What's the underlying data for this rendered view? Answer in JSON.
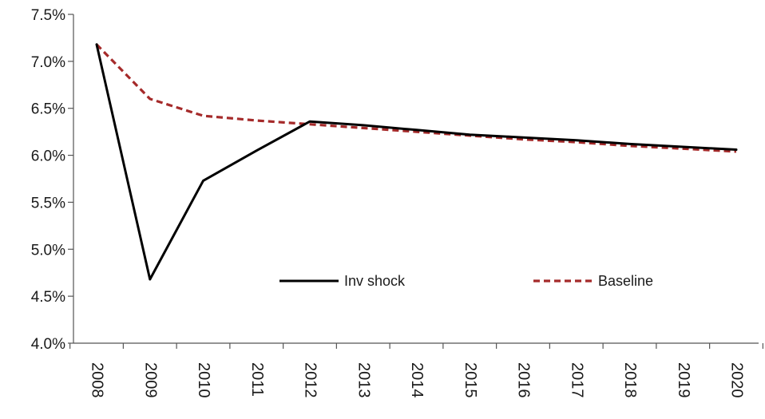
{
  "chart_data": {
    "type": "line",
    "x": [
      "2008",
      "2009",
      "2010",
      "2011",
      "2012",
      "2013",
      "2014",
      "2015",
      "2016",
      "2017",
      "2018",
      "2019",
      "2020"
    ],
    "series": [
      {
        "name": "Inv shock",
        "color": "#000000",
        "dash": "solid",
        "values": [
          7.18,
          4.68,
          5.73,
          6.05,
          6.36,
          6.32,
          6.27,
          6.22,
          6.19,
          6.16,
          6.12,
          6.09,
          6.06
        ]
      },
      {
        "name": "Baseline",
        "color": "#a52a2a",
        "dash": "dashed",
        "values": [
          7.18,
          6.6,
          6.42,
          6.37,
          6.33,
          6.29,
          6.25,
          6.21,
          6.17,
          6.14,
          6.1,
          6.07,
          6.04
        ]
      }
    ],
    "yticks": [
      "4.0%",
      "4.5%",
      "5.0%",
      "5.5%",
      "6.0%",
      "6.5%",
      "7.0%",
      "7.5%"
    ],
    "ylim": [
      4.0,
      7.5
    ],
    "grid": false,
    "legend_position": "center-inside"
  }
}
